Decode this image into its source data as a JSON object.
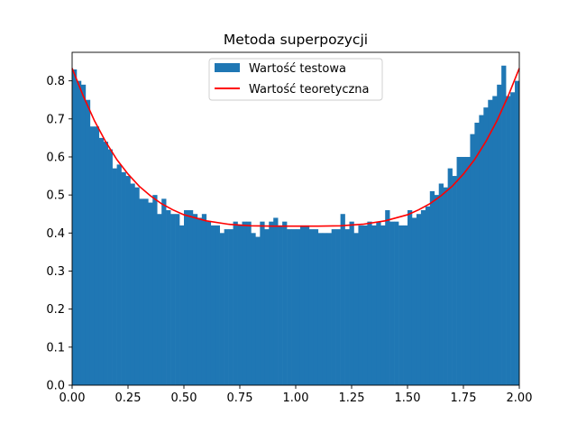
{
  "chart_data": {
    "type": "bar",
    "title": "Metoda superpozycji",
    "xlabel": "",
    "ylabel": "",
    "xlim": [
      0.0,
      2.0
    ],
    "ylim": [
      0.0,
      0.875
    ],
    "x_ticks": [
      "0.00",
      "0.25",
      "0.50",
      "0.75",
      "1.00",
      "1.25",
      "1.50",
      "1.75",
      "2.00"
    ],
    "y_ticks": [
      "0.0",
      "0.1",
      "0.2",
      "0.3",
      "0.4",
      "0.5",
      "0.6",
      "0.7",
      "0.8"
    ],
    "legend_position": "top-center",
    "grid": false,
    "series": [
      {
        "name": "Wartość testowa",
        "kind": "histogram",
        "color": "#1f77b4",
        "bin_start": 0.0,
        "bin_width": 0.02,
        "values": [
          0.83,
          0.8,
          0.79,
          0.75,
          0.68,
          0.68,
          0.65,
          0.64,
          0.62,
          0.57,
          0.58,
          0.56,
          0.55,
          0.53,
          0.52,
          0.49,
          0.49,
          0.48,
          0.5,
          0.45,
          0.49,
          0.46,
          0.45,
          0.45,
          0.42,
          0.46,
          0.46,
          0.45,
          0.44,
          0.45,
          0.43,
          0.42,
          0.42,
          0.4,
          0.41,
          0.41,
          0.43,
          0.42,
          0.43,
          0.43,
          0.4,
          0.39,
          0.43,
          0.41,
          0.43,
          0.44,
          0.42,
          0.43,
          0.41,
          0.41,
          0.41,
          0.42,
          0.42,
          0.41,
          0.41,
          0.4,
          0.4,
          0.4,
          0.41,
          0.41,
          0.45,
          0.41,
          0.43,
          0.4,
          0.42,
          0.42,
          0.43,
          0.42,
          0.43,
          0.42,
          0.46,
          0.43,
          0.43,
          0.42,
          0.42,
          0.46,
          0.44,
          0.45,
          0.46,
          0.47,
          0.51,
          0.5,
          0.53,
          0.52,
          0.57,
          0.55,
          0.6,
          0.6,
          0.6,
          0.66,
          0.69,
          0.71,
          0.73,
          0.75,
          0.76,
          0.79,
          0.84,
          0.76,
          0.77,
          0.8
        ]
      },
      {
        "name": "Wartość teoretyczna",
        "kind": "line",
        "color": "#ff0000",
        "x": [
          0.0,
          0.05,
          0.1,
          0.15,
          0.2,
          0.25,
          0.3,
          0.35,
          0.4,
          0.45,
          0.5,
          0.6,
          0.7,
          0.8,
          0.9,
          1.0,
          1.1,
          1.2,
          1.3,
          1.4,
          1.5,
          1.55,
          1.6,
          1.65,
          1.7,
          1.75,
          1.8,
          1.85,
          1.9,
          1.95,
          2.0
        ],
        "y": [
          0.833,
          0.76,
          0.695,
          0.64,
          0.593,
          0.555,
          0.523,
          0.498,
          0.477,
          0.461,
          0.448,
          0.432,
          0.423,
          0.419,
          0.418,
          0.418,
          0.418,
          0.419,
          0.423,
          0.432,
          0.448,
          0.461,
          0.477,
          0.498,
          0.523,
          0.555,
          0.593,
          0.64,
          0.695,
          0.76,
          0.833
        ]
      }
    ]
  }
}
